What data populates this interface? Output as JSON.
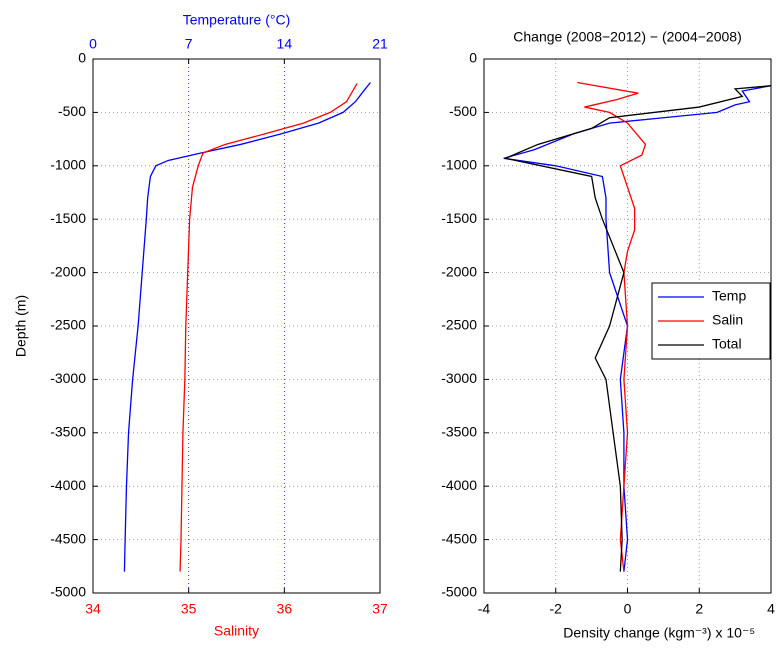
{
  "chart_data": [
    {
      "type": "line",
      "xlabel": "Salinity",
      "x2label": "Temperature (°C)",
      "ylabel": "Depth (m)",
      "xlim": [
        34,
        37
      ],
      "xticks": [
        34,
        35,
        36,
        37
      ],
      "xcolor": "#ff0000",
      "x2lim": [
        0,
        21
      ],
      "x2ticks": [
        0,
        7,
        14,
        21
      ],
      "x2color": "#0000ff",
      "ylim": [
        -5000,
        0
      ],
      "yticks": [
        -5000,
        -4500,
        -4000,
        -3500,
        -3000,
        -2500,
        -2000,
        -1500,
        -1000,
        -500,
        0
      ],
      "grid": true,
      "series": [
        {
          "color": "#0000ff",
          "axis": "x2",
          "x": [
            20.3,
            19.8,
            19.2,
            18.3,
            16.5,
            13.8,
            10.8,
            7.9,
            5.5,
            4.6,
            4.2,
            4.0,
            3.9,
            3.6,
            3.3,
            2.9,
            2.6,
            2.45,
            2.35,
            2.3
          ],
          "y": [
            -220,
            -300,
            -400,
            -500,
            -600,
            -700,
            -800,
            -880,
            -950,
            -1000,
            -1100,
            -1300,
            -1500,
            -2000,
            -2500,
            -3000,
            -3500,
            -4000,
            -4500,
            -4800
          ]
        },
        {
          "color": "#ff0000",
          "x": [
            36.76,
            36.65,
            36.48,
            36.2,
            35.8,
            35.38,
            35.15,
            35.1,
            35.04,
            35.01,
            34.99,
            34.97,
            34.96,
            34.94,
            34.93,
            34.92,
            34.91
          ],
          "y": [
            -230,
            -400,
            -500,
            -600,
            -700,
            -800,
            -880,
            -1000,
            -1200,
            -1500,
            -2000,
            -2500,
            -3000,
            -3500,
            -4000,
            -4500,
            -4800
          ]
        }
      ]
    },
    {
      "type": "line",
      "title": "Change (2008−2012) − (2004−2008)",
      "xlabel": "Density change (kgm⁻³)",
      "x_multiplier": "x 10⁻⁵",
      "xlim": [
        -4,
        4
      ],
      "xticks": [
        -4,
        -2,
        0,
        2,
        4
      ],
      "ylim": [
        -5000,
        0
      ],
      "yticks": [
        -5000,
        -4500,
        -4000,
        -3500,
        -3000,
        -2500,
        -2000,
        -1500,
        -1000,
        -500,
        0
      ],
      "grid": true,
      "legend": "east",
      "series": [
        {
          "name": "Temp",
          "color": "#0000ff",
          "x": [
            4.0,
            3.2,
            3.4,
            3.0,
            2.5,
            1.0,
            -0.5,
            -1.5,
            -2.6,
            -3.45,
            -2.0,
            -0.7,
            -0.6,
            -0.6,
            -0.5,
            0.0,
            -0.2,
            -0.1,
            -0.1,
            0.0,
            -0.1
          ],
          "y": [
            -250,
            -300,
            -400,
            -430,
            -500,
            -550,
            -600,
            -700,
            -850,
            -930,
            -1000,
            -1100,
            -1300,
            -1500,
            -2000,
            -2500,
            -3000,
            -3500,
            -4000,
            -4500,
            -4800
          ]
        },
        {
          "name": "Salin",
          "color": "#ff0000",
          "x": [
            -1.4,
            0.3,
            -0.3,
            -1.2,
            -0.5,
            0.0,
            0.5,
            0.4,
            -0.2,
            0.0,
            0.2,
            0.2,
            0.0,
            -0.1,
            0.0,
            -0.1,
            0.0,
            -0.1,
            -0.2,
            -0.1
          ],
          "y": [
            -220,
            -320,
            -380,
            -450,
            -500,
            -600,
            -800,
            -900,
            -1000,
            -1200,
            -1400,
            -1600,
            -1800,
            -2000,
            -2500,
            -3000,
            -3500,
            -4000,
            -4500,
            -4800
          ]
        },
        {
          "name": "Total",
          "color": "#000000",
          "x": [
            4.0,
            3.0,
            3.2,
            2.0,
            -0.5,
            -1.0,
            -2.5,
            -3.4,
            -1.0,
            -0.9,
            -0.7,
            -0.1,
            -0.5,
            -0.9,
            -0.6,
            -0.4,
            -0.2,
            -0.15,
            -0.2
          ],
          "y": [
            -250,
            -280,
            -350,
            -450,
            -550,
            -650,
            -800,
            -930,
            -1100,
            -1300,
            -1500,
            -2000,
            -2500,
            -2800,
            -3000,
            -3500,
            -4000,
            -4500,
            -4800
          ]
        }
      ]
    }
  ]
}
